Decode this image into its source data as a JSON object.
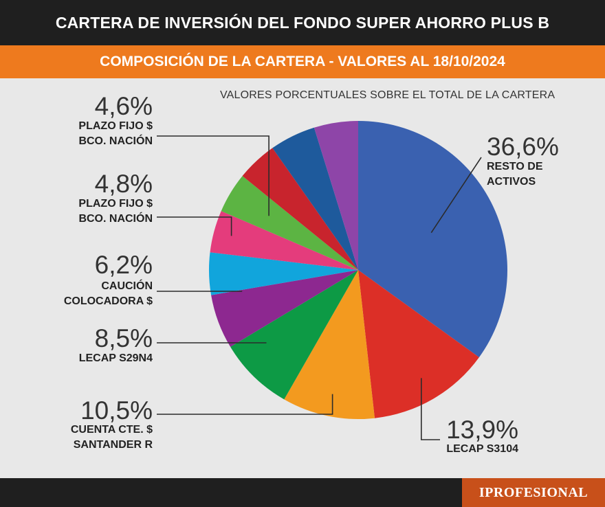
{
  "header": {
    "title": "CARTERA DE INVERSIÓN DEL FONDO SUPER AHORRO PLUS B",
    "subtitle": "COMPOSICIÓN DE LA CARTERA - VALORES AL 18/10/2024",
    "note": "VALORES PORCENTUALES SOBRE EL TOTAL DE LA CARTERA"
  },
  "chart_data": {
    "type": "pie",
    "slices": [
      {
        "label_lines": [
          "RESTO DE",
          "ACTIVOS"
        ],
        "value": 36.6,
        "value_text": "36,6%",
        "color": "#3a61b0"
      },
      {
        "label_lines": [
          "LECAP S3104"
        ],
        "value": 13.9,
        "value_text": "13,9%",
        "color": "#dc2f27"
      },
      {
        "label_lines": [
          "CUENTA CTE. $",
          "SANTANDER R"
        ],
        "value": 10.5,
        "value_text": "10,5%",
        "color": "#f39a1f"
      },
      {
        "label_lines": [
          "LECAP S29N4"
        ],
        "value": 8.5,
        "value_text": "8,5%",
        "color": "#0d9a45"
      },
      {
        "label_lines": [
          "CAUCIÓN",
          "COLOCADORA $"
        ],
        "value": 6.2,
        "value_text": "6,2%",
        "color": "#8d2890"
      },
      {
        "label_lines": [],
        "value": 4.8,
        "value_text": "",
        "color": "#11a5dc"
      },
      {
        "label_lines": [
          "PLAZO FIJO $",
          "BCO. NACIÓN"
        ],
        "value": 4.8,
        "value_text": "4,8%",
        "color": "#e43c7c"
      },
      {
        "label_lines": [
          "PLAZO FIJO $",
          "BCO. NACIÓN"
        ],
        "value": 4.6,
        "value_text": "4,6%",
        "color": "#5cb443"
      },
      {
        "label_lines": [],
        "value": 4.6,
        "value_text": "",
        "color": "#c8242d"
      },
      {
        "label_lines": [],
        "value": 5.2,
        "value_text": "",
        "color": "#1e5a9c"
      },
      {
        "label_lines": [],
        "value": 5.0,
        "value_text": "",
        "color": "#8e45a8"
      }
    ]
  },
  "footer": {
    "logo": "IPROFESIONAL"
  }
}
